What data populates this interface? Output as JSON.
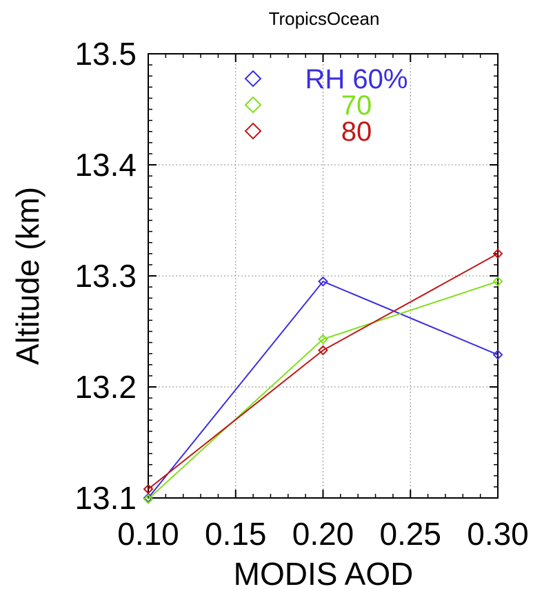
{
  "chart_data": {
    "type": "line",
    "title": "TropicsOcean",
    "xlabel": "MODIS AOD",
    "ylabel": "Altitude (km)",
    "x": [
      0.1,
      0.2,
      0.3
    ],
    "xlim": [
      0.1,
      0.3
    ],
    "ylim": [
      13.1,
      13.5
    ],
    "xticks": [
      "0.10",
      "0.15",
      "0.20",
      "0.25",
      "0.30"
    ],
    "yticks": [
      "13.1",
      "13.2",
      "13.3",
      "13.4",
      "13.5"
    ],
    "legend_position": "top-center",
    "marker": "diamond",
    "series": [
      {
        "name": "RH 60%",
        "color": "#3a2ee0",
        "values": [
          13.1,
          13.295,
          13.229
        ]
      },
      {
        "name": "70",
        "color": "#80e01a",
        "values": [
          13.099,
          13.243,
          13.295
        ]
      },
      {
        "name": "80",
        "color": "#c01818",
        "values": [
          13.108,
          13.233,
          13.32
        ]
      }
    ]
  }
}
